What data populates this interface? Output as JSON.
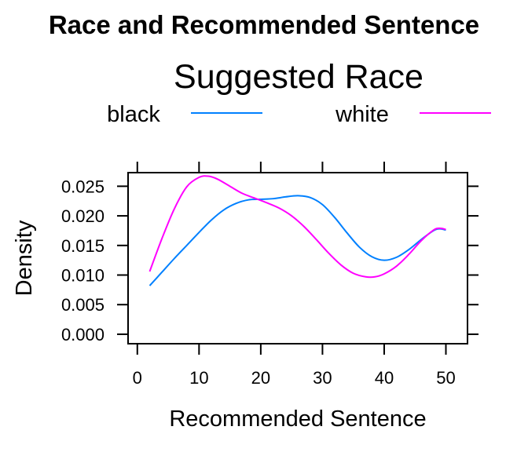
{
  "chart_data": {
    "type": "line",
    "title": "Race and Recommended Sentence",
    "legend_title": "Suggested Race",
    "legend_position": "top",
    "xlabel": "Recommended Sentence",
    "ylabel": "Density",
    "xlim": [
      -1.5,
      53.5
    ],
    "ylim": [
      -0.0016,
      0.0273
    ],
    "x_ticks": [
      0,
      10,
      20,
      30,
      40,
      50
    ],
    "y_ticks": [
      0.0,
      0.005,
      0.01,
      0.015,
      0.02,
      0.025
    ],
    "x_tick_labels": [
      "0",
      "10",
      "20",
      "30",
      "40",
      "50"
    ],
    "y_tick_labels": [
      "0.000",
      "0.005",
      "0.010",
      "0.015",
      "0.020",
      "0.025"
    ],
    "grid": false,
    "series": [
      {
        "name": "black",
        "color": "#0080FF",
        "points": [
          [
            2,
            0.0082
          ],
          [
            4,
            0.0105
          ],
          [
            6,
            0.0128
          ],
          [
            8,
            0.015
          ],
          [
            10,
            0.0172
          ],
          [
            12,
            0.0193
          ],
          [
            14,
            0.021
          ],
          [
            16,
            0.0221
          ],
          [
            18,
            0.0227
          ],
          [
            20,
            0.0228
          ],
          [
            22,
            0.0229
          ],
          [
            24,
            0.0232
          ],
          [
            26,
            0.0234
          ],
          [
            28,
            0.0231
          ],
          [
            30,
            0.0219
          ],
          [
            32,
            0.0197
          ],
          [
            34,
            0.0171
          ],
          [
            36,
            0.0147
          ],
          [
            38,
            0.0131
          ],
          [
            40,
            0.0125
          ],
          [
            42,
            0.013
          ],
          [
            44,
            0.0143
          ],
          [
            46,
            0.016
          ],
          [
            48,
            0.0175
          ],
          [
            49,
            0.0178
          ],
          [
            50,
            0.0176
          ]
        ]
      },
      {
        "name": "white",
        "color": "#FF00FF",
        "points": [
          [
            2,
            0.0106
          ],
          [
            4,
            0.0162
          ],
          [
            6,
            0.0212
          ],
          [
            8,
            0.0249
          ],
          [
            10,
            0.0265
          ],
          [
            11.5,
            0.0267
          ],
          [
            13,
            0.0262
          ],
          [
            15,
            0.025
          ],
          [
            17,
            0.0238
          ],
          [
            19,
            0.023
          ],
          [
            21,
            0.0222
          ],
          [
            23,
            0.0213
          ],
          [
            25,
            0.02
          ],
          [
            27,
            0.0182
          ],
          [
            29,
            0.016
          ],
          [
            31,
            0.0137
          ],
          [
            33,
            0.0117
          ],
          [
            35,
            0.0103
          ],
          [
            37,
            0.0097
          ],
          [
            38.5,
            0.0097
          ],
          [
            40,
            0.0102
          ],
          [
            42,
            0.0115
          ],
          [
            44,
            0.0135
          ],
          [
            46,
            0.0158
          ],
          [
            48,
            0.0176
          ],
          [
            49,
            0.0179
          ],
          [
            50,
            0.0177
          ]
        ]
      }
    ]
  }
}
